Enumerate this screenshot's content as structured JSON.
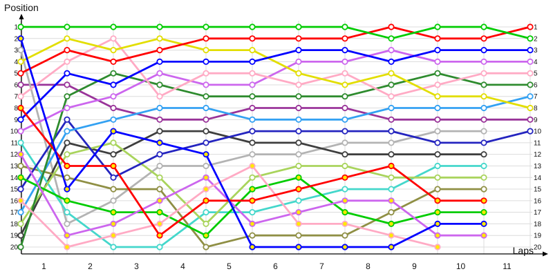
{
  "titles": {
    "y_axis": "Position",
    "x_axis": "Laps"
  },
  "chart_data": {
    "type": "line",
    "title": "",
    "xlabel": "Laps",
    "ylabel": "Position",
    "grid": true,
    "legend": "none",
    "y_axis": {
      "min": 1,
      "max": 20,
      "inverted": true,
      "ticks_left": [
        1,
        2,
        3,
        4,
        5,
        6,
        7,
        8,
        9,
        10,
        11,
        12,
        13,
        14,
        15,
        16,
        17,
        18,
        19,
        20
      ],
      "ticks_right": [
        1,
        2,
        3,
        4,
        5,
        6,
        7,
        8,
        9,
        10,
        11,
        12,
        13,
        14,
        15,
        16,
        17,
        18,
        19,
        20
      ]
    },
    "x_axis": {
      "ticks": [
        1,
        2,
        3,
        4,
        5,
        6,
        7,
        8,
        9,
        10,
        11
      ],
      "x_values": [
        0.5,
        1.5,
        2.5,
        3.5,
        4.5,
        5.5,
        6.5,
        7.5,
        8.5,
        9.5,
        10.5,
        11.5
      ]
    },
    "style": {
      "grid_color": "#DCDCDC",
      "axis_color": "#000000",
      "marker_white": "#FFFFFF",
      "marker_yellow": "#FFE800",
      "background": "#FFFFFF",
      "text_color": "#111111"
    },
    "series": [
      {
        "name": "purple",
        "color": "#993399",
        "marker": "white",
        "positions": [
          6,
          6,
          8,
          9,
          9,
          8,
          8,
          8,
          9,
          9,
          9,
          9
        ]
      },
      {
        "name": "gray",
        "color": "#B3B3B3",
        "marker": "white",
        "positions": [
          3,
          18,
          16,
          13,
          13,
          12,
          12,
          11,
          11,
          10,
          10,
          null
        ]
      },
      {
        "name": "dark-gray",
        "color": "#3E3E3E",
        "marker": "white",
        "positions": [
          19,
          11,
          12,
          10,
          10,
          11,
          11,
          12,
          12,
          12,
          12,
          null
        ]
      },
      {
        "name": "olive",
        "color": "#8F8F44",
        "marker": "white",
        "positions": [
          13,
          14,
          15,
          15,
          20,
          19,
          19,
          19,
          17,
          15,
          15,
          null
        ]
      },
      {
        "name": "cyan",
        "color": "#44D7CB",
        "marker": "white",
        "positions": [
          11,
          17,
          20,
          20,
          17,
          17,
          16,
          15,
          15,
          13,
          13,
          null
        ]
      },
      {
        "name": "chartreuse",
        "color": "#A9D45C",
        "marker": "white",
        "positions": [
          18,
          12,
          11,
          14,
          18,
          14,
          13,
          13,
          14,
          14,
          14,
          null
        ]
      },
      {
        "name": "navy",
        "color": "#2424BF",
        "marker": "white",
        "positions": [
          15,
          9,
          14,
          12,
          11,
          10,
          10,
          10,
          10,
          11,
          11,
          10
        ]
      },
      {
        "name": "sky-blue",
        "color": "#33A1F2",
        "marker": "white",
        "positions": [
          17,
          10,
          9,
          8,
          8,
          9,
          9,
          9,
          8,
          8,
          8,
          7
        ]
      },
      {
        "name": "dark-green",
        "color": "#2E8B2E",
        "marker": "white",
        "positions": [
          20,
          7,
          5,
          6,
          7,
          7,
          7,
          7,
          6,
          5,
          6,
          6
        ]
      },
      {
        "name": "violet",
        "color": "#CC66EE",
        "marker": "white",
        "positions": [
          10,
          8,
          7,
          5,
          6,
          6,
          4,
          4,
          3,
          4,
          4,
          4
        ]
      },
      {
        "name": "pink",
        "color": "#FFAAC4",
        "marker": "white",
        "positions": [
          7,
          4,
          2,
          7,
          5,
          5,
          6,
          5,
          7,
          6,
          5,
          5
        ]
      },
      {
        "name": "yellow",
        "color": "#E2DE00",
        "marker": "white",
        "positions": [
          4,
          2,
          3,
          2,
          3,
          3,
          5,
          6,
          5,
          7,
          7,
          8
        ]
      },
      {
        "name": "blue",
        "color": "#0000FF",
        "marker": "white",
        "positions": [
          9,
          5,
          6,
          4,
          4,
          4,
          3,
          3,
          4,
          3,
          3,
          3
        ]
      },
      {
        "name": "red",
        "color": "#FF0000",
        "marker": "white",
        "positions": [
          5,
          3,
          4,
          3,
          2,
          2,
          2,
          2,
          1,
          2,
          2,
          1
        ]
      },
      {
        "name": "green",
        "color": "#00CC00",
        "marker": "white",
        "positions": [
          1,
          1,
          1,
          1,
          1,
          1,
          1,
          1,
          2,
          1,
          1,
          2
        ]
      },
      {
        "name": "green-2",
        "color": "#00CC00",
        "marker": "yellow",
        "positions": [
          14,
          16,
          17,
          17,
          19,
          15,
          14,
          17,
          18,
          17,
          17,
          null
        ]
      },
      {
        "name": "violet-2",
        "color": "#CC66EE",
        "marker": "yellow",
        "positions": [
          12,
          19,
          18,
          16,
          14,
          18,
          17,
          16,
          16,
          19,
          19,
          null
        ]
      },
      {
        "name": "pink-2",
        "color": "#FFAAC4",
        "marker": "yellow",
        "positions": [
          16,
          20,
          19,
          18,
          15,
          13,
          18,
          18,
          19,
          20,
          null,
          null
        ]
      },
      {
        "name": "red-2",
        "color": "#FF0000",
        "marker": "yellow",
        "positions": [
          8,
          13,
          13,
          19,
          16,
          16,
          15,
          14,
          13,
          16,
          16,
          null
        ]
      },
      {
        "name": "blue-2",
        "color": "#0000FF",
        "marker": "yellow",
        "positions": [
          2,
          15,
          10,
          11,
          12,
          20,
          20,
          20,
          20,
          18,
          18,
          null
        ]
      }
    ]
  }
}
